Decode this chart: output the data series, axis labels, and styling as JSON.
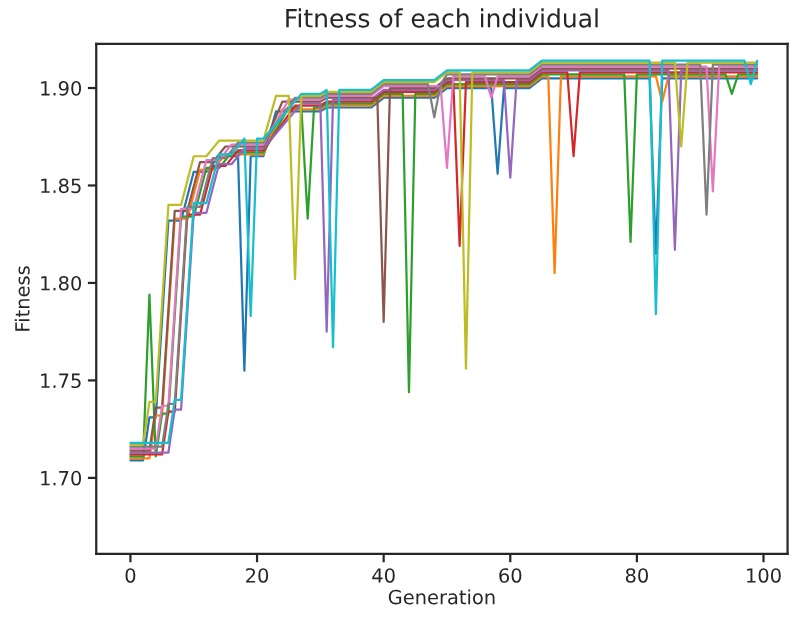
{
  "chart_data": {
    "type": "line",
    "title": "Fitness of each individual",
    "xlabel": "Generation",
    "ylabel": "Fitness",
    "xlim": [
      -5.4,
      103.8
    ],
    "ylim": [
      1.661,
      1.9226
    ],
    "xticks": [
      0,
      20,
      40,
      60,
      80,
      100
    ],
    "yticks": [
      {
        "value": 1.7,
        "label": "1.70"
      },
      {
        "value": 1.75,
        "label": "1.75"
      },
      {
        "value": 1.8,
        "label": "1.80"
      },
      {
        "value": 1.85,
        "label": "1.85"
      },
      {
        "value": 1.9,
        "label": "1.90"
      }
    ],
    "grid": false,
    "legend": false,
    "series": [
      {
        "color": "#1f77b4",
        "x": [
          0,
          2,
          3,
          4,
          6,
          8,
          10,
          12,
          14,
          17,
          18,
          19,
          21,
          23,
          30,
          31,
          38,
          40,
          48,
          50,
          57,
          58,
          59,
          63,
          65,
          82,
          83,
          84,
          99
        ],
        "values": [
          1.709,
          1.709,
          1.731,
          1.731,
          1.832,
          1.832,
          1.857,
          1.857,
          1.865,
          1.865,
          1.755,
          1.865,
          1.865,
          1.888,
          1.888,
          1.89,
          1.89,
          1.895,
          1.895,
          1.9,
          1.9,
          1.856,
          1.9,
          1.9,
          1.905,
          1.905,
          1.815,
          1.905,
          1.905
        ]
      },
      {
        "color": "#ff7f0e",
        "x": [
          0,
          3,
          4,
          5,
          7,
          9,
          11,
          13,
          15,
          21,
          24,
          30,
          31,
          38,
          40,
          48,
          50,
          63,
          65,
          66,
          67,
          68,
          83,
          84,
          85,
          99
        ],
        "values": [
          1.71,
          1.71,
          1.732,
          1.732,
          1.833,
          1.833,
          1.858,
          1.858,
          1.866,
          1.866,
          1.889,
          1.889,
          1.891,
          1.891,
          1.896,
          1.896,
          1.901,
          1.901,
          1.906,
          1.906,
          1.805,
          1.906,
          1.906,
          1.893,
          1.906,
          1.906
        ]
      },
      {
        "color": "#2ca02c",
        "x": [
          0,
          2,
          3,
          4,
          5,
          6,
          8,
          10,
          12,
          14,
          16,
          21,
          25,
          27,
          28,
          29,
          30,
          31,
          38,
          40,
          43,
          44,
          45,
          48,
          50,
          63,
          65,
          78,
          79,
          80,
          94,
          95,
          96,
          99
        ],
        "values": [
          1.711,
          1.711,
          1.794,
          1.711,
          1.733,
          1.733,
          1.834,
          1.834,
          1.859,
          1.859,
          1.867,
          1.867,
          1.89,
          1.89,
          1.833,
          1.89,
          1.89,
          1.892,
          1.892,
          1.897,
          1.897,
          1.744,
          1.897,
          1.897,
          1.902,
          1.902,
          1.907,
          1.907,
          1.821,
          1.907,
          1.907,
          1.897,
          1.907,
          1.907
        ]
      },
      {
        "color": "#d62728",
        "x": [
          0,
          5,
          6,
          7,
          9,
          11,
          13,
          15,
          17,
          21,
          26,
          30,
          31,
          38,
          40,
          48,
          50,
          51,
          52,
          53,
          63,
          65,
          69,
          70,
          71,
          99
        ],
        "values": [
          1.712,
          1.712,
          1.734,
          1.734,
          1.835,
          1.835,
          1.86,
          1.86,
          1.868,
          1.868,
          1.891,
          1.891,
          1.893,
          1.893,
          1.898,
          1.898,
          1.903,
          1.903,
          1.819,
          1.903,
          1.903,
          1.908,
          1.908,
          1.865,
          1.908,
          1.908
        ]
      },
      {
        "color": "#9467bd",
        "x": [
          0,
          6,
          7,
          8,
          10,
          12,
          14,
          16,
          18,
          21,
          27,
          30,
          31,
          32,
          38,
          40,
          48,
          50,
          59,
          60,
          61,
          63,
          65,
          85,
          86,
          87,
          99
        ],
        "values": [
          1.713,
          1.713,
          1.735,
          1.735,
          1.836,
          1.836,
          1.861,
          1.861,
          1.869,
          1.869,
          1.892,
          1.892,
          1.775,
          1.894,
          1.894,
          1.899,
          1.899,
          1.904,
          1.904,
          1.854,
          1.904,
          1.904,
          1.909,
          1.909,
          1.817,
          1.909,
          1.909
        ]
      },
      {
        "color": "#8c564b",
        "x": [
          0,
          3,
          4,
          5,
          7,
          9,
          11,
          13,
          15,
          21,
          24,
          30,
          31,
          39,
          40,
          41,
          48,
          50,
          63,
          65,
          99
        ],
        "values": [
          1.714,
          1.714,
          1.736,
          1.736,
          1.837,
          1.837,
          1.862,
          1.862,
          1.87,
          1.87,
          1.893,
          1.893,
          1.895,
          1.895,
          1.78,
          1.9,
          1.9,
          1.905,
          1.905,
          1.91,
          1.91
        ]
      },
      {
        "color": "#e377c2",
        "x": [
          0,
          4,
          5,
          6,
          8,
          10,
          12,
          14,
          16,
          21,
          25,
          30,
          31,
          38,
          40,
          49,
          50,
          51,
          56,
          57,
          58,
          63,
          65,
          91,
          92,
          93,
          99
        ],
        "values": [
          1.715,
          1.715,
          1.737,
          1.737,
          1.838,
          1.838,
          1.863,
          1.863,
          1.871,
          1.871,
          1.894,
          1.894,
          1.896,
          1.896,
          1.901,
          1.901,
          1.859,
          1.906,
          1.906,
          1.895,
          1.906,
          1.906,
          1.911,
          1.911,
          1.847,
          1.911,
          1.911
        ]
      },
      {
        "color": "#7f7f7f",
        "x": [
          0,
          5,
          6,
          7,
          9,
          11,
          13,
          15,
          17,
          21,
          26,
          30,
          31,
          38,
          40,
          47,
          48,
          49,
          50,
          63,
          65,
          90,
          91,
          92,
          99
        ],
        "values": [
          1.716,
          1.716,
          1.738,
          1.738,
          1.839,
          1.839,
          1.864,
          1.864,
          1.872,
          1.872,
          1.895,
          1.895,
          1.897,
          1.897,
          1.902,
          1.902,
          1.885,
          1.902,
          1.907,
          1.907,
          1.912,
          1.912,
          1.835,
          1.912,
          1.912
        ]
      },
      {
        "color": "#bcbd22",
        "x": [
          0,
          2,
          3,
          4,
          6,
          8,
          10,
          12,
          14,
          21,
          23,
          25,
          26,
          27,
          30,
          31,
          38,
          40,
          48,
          50,
          52,
          53,
          54,
          63,
          65,
          86,
          87,
          88,
          99
        ],
        "values": [
          1.717,
          1.717,
          1.739,
          1.739,
          1.84,
          1.84,
          1.865,
          1.865,
          1.873,
          1.873,
          1.896,
          1.896,
          1.802,
          1.896,
          1.896,
          1.898,
          1.898,
          1.903,
          1.903,
          1.908,
          1.908,
          1.756,
          1.908,
          1.908,
          1.913,
          1.913,
          1.87,
          1.913,
          1.913
        ]
      },
      {
        "color": "#17becf",
        "x": [
          0,
          6,
          7,
          8,
          10,
          12,
          14,
          16,
          18,
          19,
          20,
          21,
          27,
          30,
          31,
          32,
          33,
          38,
          40,
          48,
          50,
          63,
          65,
          82,
          83,
          84,
          97,
          98,
          99
        ],
        "values": [
          1.718,
          1.718,
          1.74,
          1.74,
          1.841,
          1.841,
          1.866,
          1.866,
          1.874,
          1.783,
          1.874,
          1.874,
          1.897,
          1.897,
          1.899,
          1.767,
          1.899,
          1.899,
          1.904,
          1.904,
          1.909,
          1.909,
          1.914,
          1.914,
          1.784,
          1.914,
          1.914,
          1.902,
          1.914
        ]
      }
    ]
  }
}
